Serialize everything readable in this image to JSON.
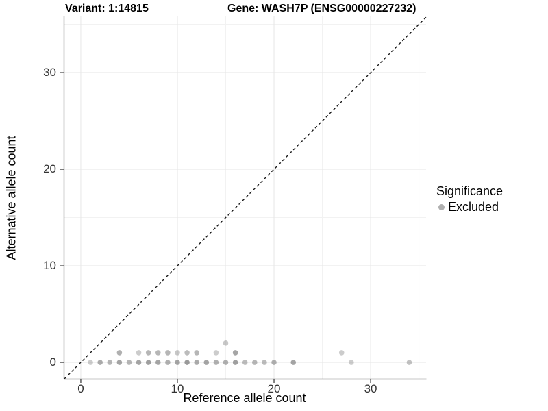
{
  "title": {
    "variant": "Variant: 1:14815",
    "gene": "Gene: WASH7P (ENSG00000227232)"
  },
  "legend": {
    "title": "Significance",
    "items": [
      {
        "label": "Excluded",
        "color": "#b0b0b0"
      }
    ]
  },
  "colors": {
    "background": "#ffffff",
    "point": "#8f8f8f",
    "grid_major": "#e6e6e6",
    "grid_minor": "#f2f2f2",
    "axis_line": "#222222",
    "tick_mark": "#333333",
    "identity_line": "#1a1a1a"
  },
  "chart_data": {
    "type": "scatter",
    "title": "Variant: 1:14815   Gene: WASH7P (ENSG00000227232)",
    "xlabel": "Reference allele count",
    "ylabel": "Alternative allele count",
    "xlim": [
      -1.77,
      35.74
    ],
    "ylim": [
      -1.7,
      35.82
    ],
    "x_ticks": [
      0,
      10,
      20,
      30
    ],
    "y_ticks": [
      0,
      10,
      20,
      30
    ],
    "x_minor_gridlines": [
      5,
      15,
      25,
      35
    ],
    "y_minor_gridlines": [
      5,
      15,
      25,
      35
    ],
    "grid": true,
    "legend_position": "right",
    "aspect": "equal",
    "identity_line": {
      "slope": 1,
      "intercept": 0,
      "style": "dashed"
    },
    "points_format": "[x, y, opacity]",
    "series": [
      {
        "name": "Excluded",
        "color": "#8f8f8f",
        "points": [
          [
            1,
            0,
            0.45
          ],
          [
            2,
            0,
            0.75
          ],
          [
            3,
            0,
            0.65
          ],
          [
            4,
            0,
            0.8
          ],
          [
            5,
            0,
            0.65
          ],
          [
            6,
            0,
            0.8
          ],
          [
            7,
            0,
            0.85
          ],
          [
            8,
            0,
            0.8
          ],
          [
            9,
            0,
            0.7
          ],
          [
            10,
            0,
            0.8
          ],
          [
            11,
            0,
            0.9
          ],
          [
            12,
            0,
            0.75
          ],
          [
            13,
            0,
            0.8
          ],
          [
            14,
            0,
            0.7
          ],
          [
            15,
            0,
            0.7
          ],
          [
            16,
            0,
            0.85
          ],
          [
            17,
            0,
            0.6
          ],
          [
            18,
            0,
            0.65
          ],
          [
            19,
            0,
            0.6
          ],
          [
            20,
            0,
            0.7
          ],
          [
            22,
            0,
            0.8
          ],
          [
            28,
            0,
            0.45
          ],
          [
            34,
            0,
            0.55
          ],
          [
            4,
            1,
            0.7
          ],
          [
            6,
            1,
            0.45
          ],
          [
            7,
            1,
            0.65
          ],
          [
            8,
            1,
            0.65
          ],
          [
            9,
            1,
            0.65
          ],
          [
            10,
            1,
            0.5
          ],
          [
            11,
            1,
            0.6
          ],
          [
            12,
            1,
            0.65
          ],
          [
            14,
            1,
            0.45
          ],
          [
            16,
            1,
            0.8
          ],
          [
            27,
            1,
            0.45
          ],
          [
            15,
            2,
            0.5
          ]
        ]
      }
    ]
  }
}
